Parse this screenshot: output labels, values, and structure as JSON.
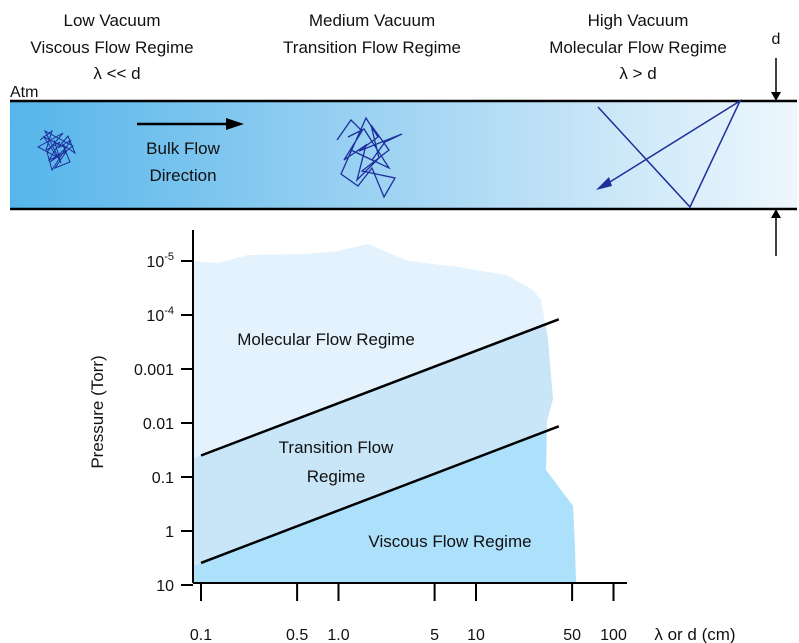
{
  "regimes": [
    {
      "title": "Low Vacuum",
      "subtitle": "Viscous Flow Regime",
      "relation": "λ << d"
    },
    {
      "title": "Medium Vacuum",
      "subtitle": "Transition Flow Regime",
      "relation": ""
    },
    {
      "title": "High Vacuum",
      "subtitle": "Molecular Flow Regime",
      "relation": "λ > d"
    }
  ],
  "pipe": {
    "atm_label": "Atm",
    "d_label": "d",
    "bulk_flow_line1": "Bulk Flow",
    "bulk_flow_line2": "Direction",
    "colors": {
      "dark": "#55b5ea",
      "light": "#eef7fd",
      "border": "#000000"
    }
  },
  "chart_data": {
    "type": "area",
    "ylabel": "Pressure (Torr)",
    "xlabel": "λ or d (cm)",
    "x_scale": "log",
    "y_scale": "log",
    "x_ticks": [
      {
        "value": 0.1,
        "label": "0.1"
      },
      {
        "value": 0.5,
        "label": "0.5"
      },
      {
        "value": 1.0,
        "label": "1.0"
      },
      {
        "value": 5,
        "label": "5"
      },
      {
        "value": 10,
        "label": "10"
      },
      {
        "value": 50,
        "label": "50"
      },
      {
        "value": 100,
        "label": "100"
      }
    ],
    "y_ticks": [
      {
        "value": 1e-05,
        "label": "10",
        "sup": "-5"
      },
      {
        "value": 0.0001,
        "label": "10",
        "sup": "-4"
      },
      {
        "value": 0.001,
        "label": "0.001",
        "sup": ""
      },
      {
        "value": 0.01,
        "label": "0.01",
        "sup": ""
      },
      {
        "value": 0.1,
        "label": "0.1",
        "sup": ""
      },
      {
        "value": 1,
        "label": "1",
        "sup": ""
      },
      {
        "value": 10,
        "label": "10",
        "sup": ""
      }
    ],
    "boundaries": [
      {
        "name": "molecular-transition",
        "x": [
          0.1,
          40
        ],
        "y": [
          0.04,
          0.00012
        ]
      },
      {
        "name": "transition-viscous",
        "x": [
          0.1,
          40
        ],
        "y": [
          3.9,
          0.0115
        ]
      }
    ],
    "regions": [
      {
        "label_lines": [
          "Molecular Flow Regime"
        ],
        "color": "#e3f2fc"
      },
      {
        "label_lines": [
          "Transition Flow",
          "Regime"
        ],
        "color": "#c8e6f8"
      },
      {
        "label_lines": [
          "Viscous Flow Regime"
        ],
        "color": "#ade0fb"
      }
    ]
  }
}
